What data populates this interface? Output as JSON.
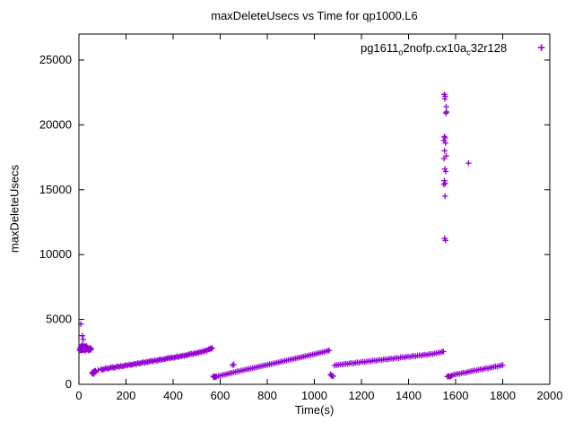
{
  "title": "maxDeleteUsecs vs Time for qp1000.L6",
  "legend": {
    "parts": [
      {
        "text": "pg1611"
      },
      {
        "text": "o",
        "sub": true
      },
      {
        "text": "2nofp.cx10a"
      },
      {
        "text": "c",
        "sub": true
      },
      {
        "text": "32r128"
      }
    ],
    "marker": "+"
  },
  "chart_data": {
    "type": "scatter",
    "title": "maxDeleteUsecs vs Time for qp1000.L6",
    "xlabel": "Time(s)",
    "ylabel": "maxDeleteUsecs",
    "xlim": [
      0,
      2000
    ],
    "ylim": [
      0,
      27000
    ],
    "xticks": [
      0,
      200,
      400,
      600,
      800,
      1000,
      1200,
      1400,
      1600,
      1800,
      2000
    ],
    "yticks": [
      0,
      5000,
      10000,
      15000,
      20000,
      25000
    ],
    "grid": false,
    "legend_position": "top-right-inside",
    "marker": "plus",
    "marker_color": "#9400d3",
    "series": [
      {
        "name": "pg1611_o2nofp.cx10a_c32r128",
        "color": "#9400d3",
        "points": [
          [
            3,
            2650
          ],
          [
            5,
            2700
          ],
          [
            6,
            2850
          ],
          [
            7,
            2600
          ],
          [
            8,
            4650
          ],
          [
            9,
            2750
          ],
          [
            10,
            2950
          ],
          [
            11,
            2700
          ],
          [
            12,
            2620
          ],
          [
            13,
            2800
          ],
          [
            14,
            3750
          ],
          [
            15,
            3050
          ],
          [
            16,
            2870
          ],
          [
            17,
            2640
          ],
          [
            18,
            3450
          ],
          [
            19,
            2760
          ],
          [
            20,
            2700
          ],
          [
            21,
            2890
          ],
          [
            22,
            2960
          ],
          [
            23,
            2710
          ],
          [
            24,
            2640
          ],
          [
            25,
            2820
          ],
          [
            26,
            2780
          ],
          [
            27,
            2600
          ],
          [
            28,
            2740
          ],
          [
            29,
            2900
          ],
          [
            30,
            2670
          ],
          [
            32,
            2950
          ],
          [
            34,
            2710
          ],
          [
            36,
            2840
          ],
          [
            38,
            2660
          ],
          [
            40,
            2760
          ],
          [
            42,
            2610
          ],
          [
            44,
            2730
          ],
          [
            46,
            2680
          ],
          [
            48,
            2800
          ],
          [
            50,
            2650
          ],
          [
            52,
            2750
          ],
          [
            56,
            900
          ],
          [
            58,
            840
          ],
          [
            60,
            950
          ],
          [
            62,
            780
          ],
          [
            64,
            880
          ],
          [
            66,
            1020
          ],
          [
            68,
            960
          ],
          [
            70,
            1050
          ],
          [
            82,
            1100
          ],
          [
            94,
            1180
          ],
          [
            100,
            1120
          ],
          [
            106,
            1150
          ],
          [
            112,
            1220
          ],
          [
            118,
            1230
          ],
          [
            124,
            1190
          ],
          [
            130,
            1260
          ],
          [
            136,
            1300
          ],
          [
            142,
            1320
          ],
          [
            148,
            1280
          ],
          [
            154,
            1300
          ],
          [
            160,
            1360
          ],
          [
            166,
            1380
          ],
          [
            172,
            1350
          ],
          [
            178,
            1420
          ],
          [
            184,
            1390
          ],
          [
            190,
            1400
          ],
          [
            196,
            1460
          ],
          [
            202,
            1480
          ],
          [
            208,
            1440
          ],
          [
            214,
            1530
          ],
          [
            220,
            1490
          ],
          [
            226,
            1510
          ],
          [
            232,
            1560
          ],
          [
            238,
            1580
          ],
          [
            244,
            1550
          ],
          [
            250,
            1640
          ],
          [
            256,
            1600
          ],
          [
            262,
            1620
          ],
          [
            268,
            1680
          ],
          [
            274,
            1700
          ],
          [
            280,
            1660
          ],
          [
            286,
            1730
          ],
          [
            292,
            1710
          ],
          [
            298,
            1760
          ],
          [
            304,
            1790
          ],
          [
            310,
            1800
          ],
          [
            316,
            1770
          ],
          [
            322,
            1860
          ],
          [
            328,
            1820
          ],
          [
            334,
            1840
          ],
          [
            340,
            1890
          ],
          [
            346,
            1920
          ],
          [
            352,
            1880
          ],
          [
            358,
            1950
          ],
          [
            364,
            1930
          ],
          [
            370,
            1980
          ],
          [
            376,
            2010
          ],
          [
            382,
            2040
          ],
          [
            388,
            2000
          ],
          [
            394,
            2080
          ],
          [
            400,
            2050
          ],
          [
            406,
            2060
          ],
          [
            412,
            2110
          ],
          [
            418,
            2140
          ],
          [
            424,
            2100
          ],
          [
            430,
            2180
          ],
          [
            436,
            2160
          ],
          [
            442,
            2220
          ],
          [
            448,
            2190
          ],
          [
            454,
            2260
          ],
          [
            460,
            2230
          ],
          [
            466,
            2300
          ],
          [
            472,
            2330
          ],
          [
            478,
            2360
          ],
          [
            484,
            2320
          ],
          [
            490,
            2400
          ],
          [
            496,
            2380
          ],
          [
            502,
            2440
          ],
          [
            508,
            2420
          ],
          [
            514,
            2500
          ],
          [
            520,
            2470
          ],
          [
            526,
            2560
          ],
          [
            532,
            2530
          ],
          [
            538,
            2620
          ],
          [
            544,
            2590
          ],
          [
            550,
            2700
          ],
          [
            554,
            2680
          ],
          [
            558,
            2760
          ],
          [
            562,
            2740
          ],
          [
            566,
            2800
          ],
          [
            570,
            620
          ],
          [
            573,
            560
          ],
          [
            576,
            590
          ],
          [
            579,
            540
          ],
          [
            582,
            610
          ],
          [
            585,
            600
          ],
          [
            593,
            650
          ],
          [
            601,
            660
          ],
          [
            609,
            720
          ],
          [
            617,
            740
          ],
          [
            625,
            770
          ],
          [
            633,
            820
          ],
          [
            641,
            850
          ],
          [
            649,
            880
          ],
          [
            652,
            1480
          ],
          [
            657,
            930
          ],
          [
            658,
            1520
          ],
          [
            665,
            950
          ],
          [
            673,
            1000
          ],
          [
            681,
            1010
          ],
          [
            689,
            1060
          ],
          [
            697,
            1080
          ],
          [
            705,
            1120
          ],
          [
            713,
            1150
          ],
          [
            721,
            1180
          ],
          [
            729,
            1210
          ],
          [
            737,
            1250
          ],
          [
            745,
            1270
          ],
          [
            753,
            1320
          ],
          [
            761,
            1340
          ],
          [
            769,
            1380
          ],
          [
            777,
            1400
          ],
          [
            785,
            1440
          ],
          [
            793,
            1470
          ],
          [
            801,
            1500
          ],
          [
            809,
            1540
          ],
          [
            817,
            1560
          ],
          [
            825,
            1610
          ],
          [
            833,
            1630
          ],
          [
            841,
            1670
          ],
          [
            849,
            1700
          ],
          [
            857,
            1740
          ],
          [
            865,
            1760
          ],
          [
            873,
            1810
          ],
          [
            881,
            1830
          ],
          [
            889,
            1870
          ],
          [
            897,
            1900
          ],
          [
            905,
            1940
          ],
          [
            913,
            1960
          ],
          [
            921,
            2000
          ],
          [
            929,
            2030
          ],
          [
            937,
            2060
          ],
          [
            945,
            2100
          ],
          [
            953,
            2130
          ],
          [
            961,
            2160
          ],
          [
            969,
            2200
          ],
          [
            977,
            2230
          ],
          [
            985,
            2260
          ],
          [
            993,
            2300
          ],
          [
            1001,
            2330
          ],
          [
            1009,
            2360
          ],
          [
            1017,
            2400
          ],
          [
            1025,
            2430
          ],
          [
            1033,
            2470
          ],
          [
            1041,
            2500
          ],
          [
            1049,
            2540
          ],
          [
            1057,
            2580
          ],
          [
            1063,
            2620
          ],
          [
            1068,
            760
          ],
          [
            1072,
            700
          ],
          [
            1076,
            650
          ],
          [
            1080,
            620
          ],
          [
            1086,
            1450
          ],
          [
            1094,
            1480
          ],
          [
            1102,
            1500
          ],
          [
            1110,
            1540
          ],
          [
            1118,
            1520
          ],
          [
            1126,
            1560
          ],
          [
            1134,
            1590
          ],
          [
            1142,
            1570
          ],
          [
            1150,
            1620
          ],
          [
            1158,
            1640
          ],
          [
            1166,
            1610
          ],
          [
            1174,
            1660
          ],
          [
            1182,
            1690
          ],
          [
            1190,
            1670
          ],
          [
            1198,
            1720
          ],
          [
            1206,
            1740
          ],
          [
            1214,
            1710
          ],
          [
            1222,
            1770
          ],
          [
            1230,
            1790
          ],
          [
            1238,
            1760
          ],
          [
            1246,
            1820
          ],
          [
            1254,
            1840
          ],
          [
            1262,
            1810
          ],
          [
            1270,
            1870
          ],
          [
            1278,
            1890
          ],
          [
            1286,
            1860
          ],
          [
            1294,
            1920
          ],
          [
            1302,
            1940
          ],
          [
            1310,
            1910
          ],
          [
            1318,
            1970
          ],
          [
            1326,
            1990
          ],
          [
            1334,
            1960
          ],
          [
            1342,
            2020
          ],
          [
            1350,
            2040
          ],
          [
            1358,
            2010
          ],
          [
            1366,
            2070
          ],
          [
            1374,
            2090
          ],
          [
            1382,
            2060
          ],
          [
            1390,
            2120
          ],
          [
            1398,
            2140
          ],
          [
            1406,
            2110
          ],
          [
            1414,
            2170
          ],
          [
            1422,
            2190
          ],
          [
            1430,
            2160
          ],
          [
            1438,
            2220
          ],
          [
            1446,
            2240
          ],
          [
            1454,
            2210
          ],
          [
            1462,
            2270
          ],
          [
            1470,
            2290
          ],
          [
            1478,
            2260
          ],
          [
            1486,
            2320
          ],
          [
            1494,
            2340
          ],
          [
            1502,
            2310
          ],
          [
            1510,
            2380
          ],
          [
            1518,
            2400
          ],
          [
            1526,
            2430
          ],
          [
            1534,
            2460
          ],
          [
            1542,
            2500
          ],
          [
            1548,
            2530
          ],
          [
            1552,
            22350
          ],
          [
            1556,
            22200
          ],
          [
            1554,
            22000
          ],
          [
            1560,
            21400
          ],
          [
            1562,
            21000
          ],
          [
            1558,
            20900
          ],
          [
            1552,
            19100
          ],
          [
            1555,
            19000
          ],
          [
            1550,
            18800
          ],
          [
            1557,
            18600
          ],
          [
            1553,
            18000
          ],
          [
            1560,
            17600
          ],
          [
            1551,
            17400
          ],
          [
            1554,
            16600
          ],
          [
            1558,
            16400
          ],
          [
            1552,
            15700
          ],
          [
            1556,
            15500
          ],
          [
            1550,
            15400
          ],
          [
            1555,
            14500
          ],
          [
            1553,
            11250
          ],
          [
            1557,
            11100
          ],
          [
            1565,
            600
          ],
          [
            1570,
            640
          ],
          [
            1575,
            580
          ],
          [
            1580,
            630
          ],
          [
            1585,
            700
          ],
          [
            1593,
            740
          ],
          [
            1601,
            760
          ],
          [
            1609,
            820
          ],
          [
            1617,
            800
          ],
          [
            1625,
            860
          ],
          [
            1633,
            900
          ],
          [
            1641,
            880
          ],
          [
            1649,
            940
          ],
          [
            1657,
            980
          ],
          [
            1665,
            1000
          ],
          [
            1673,
            1040
          ],
          [
            1681,
            1080
          ],
          [
            1689,
            1060
          ],
          [
            1697,
            1120
          ],
          [
            1705,
            1160
          ],
          [
            1713,
            1140
          ],
          [
            1721,
            1200
          ],
          [
            1729,
            1240
          ],
          [
            1737,
            1220
          ],
          [
            1745,
            1280
          ],
          [
            1753,
            1300
          ],
          [
            1761,
            1340
          ],
          [
            1769,
            1380
          ],
          [
            1777,
            1360
          ],
          [
            1785,
            1420
          ],
          [
            1793,
            1460
          ],
          [
            1800,
            1480
          ],
          [
            1655,
            17050
          ]
        ]
      }
    ]
  }
}
